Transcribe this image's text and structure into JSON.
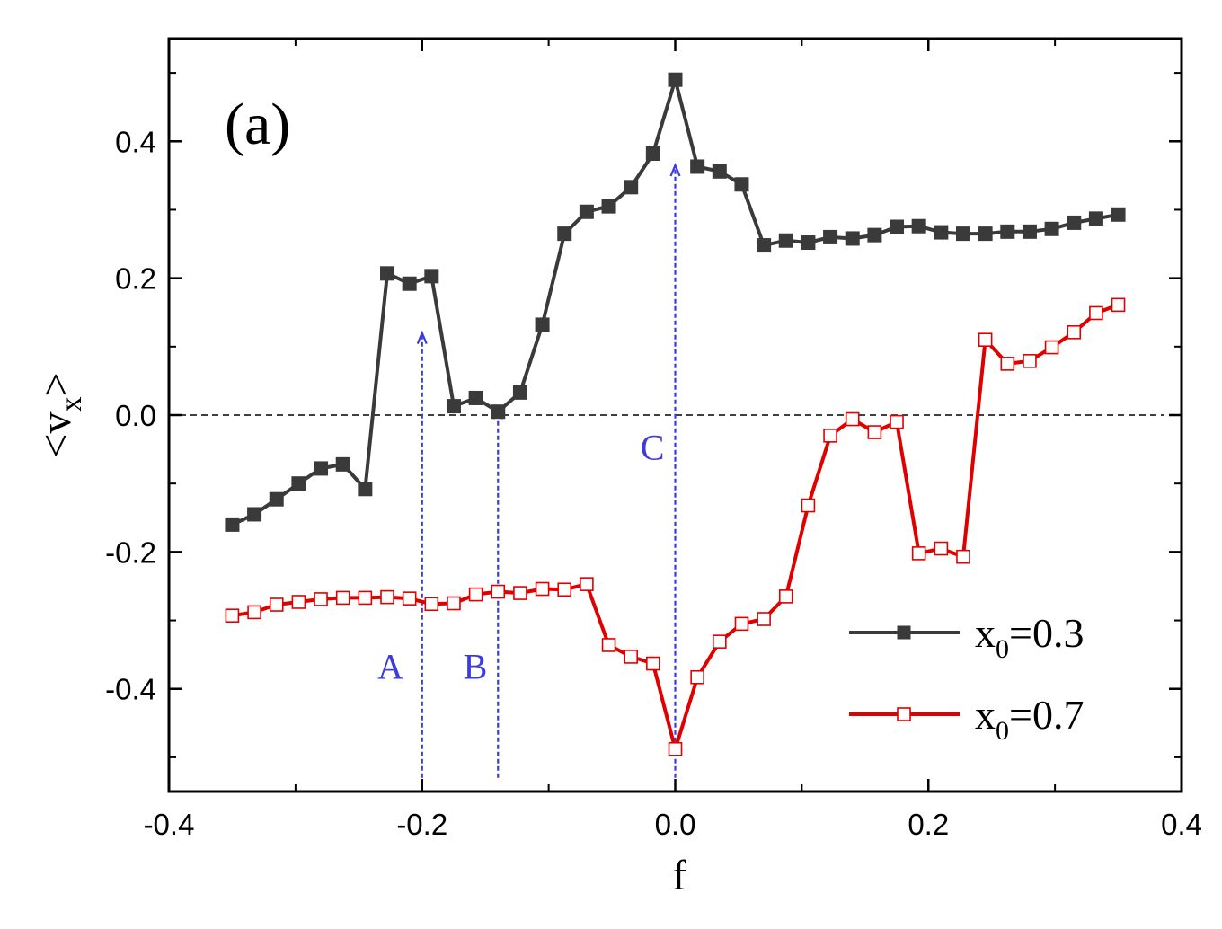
{
  "chart_data": {
    "type": "line",
    "panel_label": "(a)",
    "xlabel": "f",
    "ylabel": {
      "open": "<",
      "main": "v",
      "sub": "x",
      "close": ">"
    },
    "xlim": [
      -0.4,
      0.4
    ],
    "ylim": [
      -0.55,
      0.55
    ],
    "xticks": [
      {
        "value": -0.4,
        "label": "-0.4"
      },
      {
        "value": -0.2,
        "label": "-0.2"
      },
      {
        "value": 0.0,
        "label": "0.0"
      },
      {
        "value": 0.2,
        "label": "0.2"
      },
      {
        "value": 0.4,
        "label": "0.4"
      }
    ],
    "yticks": [
      {
        "value": -0.4,
        "label": "-0.4"
      },
      {
        "value": -0.2,
        "label": "-0.2"
      },
      {
        "value": 0.0,
        "label": "0.0"
      },
      {
        "value": 0.2,
        "label": "0.2"
      },
      {
        "value": 0.4,
        "label": "0.4"
      }
    ],
    "x": [
      -0.35,
      -0.3325,
      -0.315,
      -0.2975,
      -0.28,
      -0.2625,
      -0.245,
      -0.2275,
      -0.21,
      -0.1925,
      -0.175,
      -0.1575,
      -0.14,
      -0.1225,
      -0.105,
      -0.0875,
      -0.07,
      -0.0525,
      -0.035,
      -0.0175,
      0.0,
      0.0175,
      0.035,
      0.0525,
      0.07,
      0.0875,
      0.105,
      0.1225,
      0.14,
      0.1575,
      0.175,
      0.1925,
      0.21,
      0.2275,
      0.245,
      0.2625,
      0.28,
      0.2975,
      0.315,
      0.3325,
      0.35
    ],
    "series": [
      {
        "name_main": "x",
        "name_sub": "0",
        "name_rest": "=0.3",
        "color": "#3a3a3a",
        "marker": "filled-square",
        "values": [
          -0.16,
          -0.145,
          -0.123,
          -0.1,
          -0.078,
          -0.072,
          -0.108,
          0.207,
          0.192,
          0.203,
          0.013,
          0.025,
          0.005,
          0.033,
          0.132,
          0.265,
          0.297,
          0.305,
          0.333,
          0.382,
          0.49,
          0.363,
          0.356,
          0.337,
          0.248,
          0.255,
          0.252,
          0.26,
          0.258,
          0.263,
          0.275,
          0.276,
          0.267,
          0.265,
          0.265,
          0.268,
          0.268,
          0.272,
          0.281,
          0.287,
          0.293
        ]
      },
      {
        "name_main": "x",
        "name_sub": "0",
        "name_rest": "=0.7",
        "color": "#e00000",
        "marker": "open-square",
        "values": [
          -0.293,
          -0.288,
          -0.277,
          -0.273,
          -0.269,
          -0.267,
          -0.267,
          -0.266,
          -0.268,
          -0.276,
          -0.275,
          -0.262,
          -0.258,
          -0.26,
          -0.254,
          -0.255,
          -0.247,
          -0.336,
          -0.353,
          -0.363,
          -0.488,
          -0.383,
          -0.331,
          -0.305,
          -0.298,
          -0.265,
          -0.132,
          -0.03,
          -0.006,
          -0.025,
          -0.01,
          -0.202,
          -0.195,
          -0.207,
          0.11,
          0.075,
          0.079,
          0.099,
          0.121,
          0.149,
          0.161
        ]
      }
    ],
    "reference_line": {
      "y": 0.0,
      "style": "dashed"
    },
    "annotations": [
      {
        "label": "A",
        "x": -0.2,
        "y_from": -0.53,
        "y_to": 0.12,
        "label_x": -0.225,
        "label_y": -0.385
      },
      {
        "label": "B",
        "x": -0.14,
        "y_from": -0.53,
        "y_to": 0.01,
        "label_x": -0.158,
        "label_y": -0.385
      },
      {
        "label": "C",
        "x": 0.0,
        "y_from": -0.53,
        "y_to": 0.365,
        "label_x": -0.018,
        "label_y": -0.065
      }
    ],
    "annotation_color": "#3b3bde",
    "legend_position": "bottom-right"
  }
}
